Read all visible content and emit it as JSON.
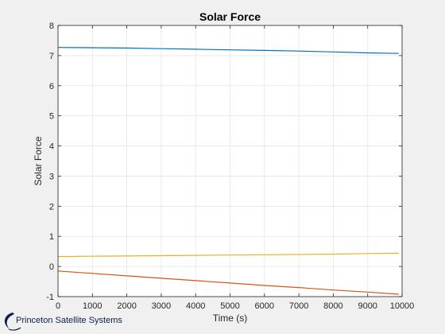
{
  "chart_data": {
    "type": "line",
    "title": "Solar Force",
    "xlabel": "Time (s)",
    "ylabel": "Solar Force",
    "xlim": [
      0,
      10000
    ],
    "ylim": [
      -1,
      8
    ],
    "xticks": [
      0,
      1000,
      2000,
      3000,
      4000,
      5000,
      6000,
      7000,
      8000,
      9000,
      10000
    ],
    "yticks": [
      -1,
      0,
      1,
      2,
      3,
      4,
      5,
      6,
      7,
      8
    ],
    "grid": true,
    "series": [
      {
        "color": "#0072bd",
        "x": [
          0,
          1000,
          2000,
          3000,
          4000,
          5000,
          6000,
          7000,
          8000,
          9000,
          9900
        ],
        "y": [
          7.27,
          7.26,
          7.25,
          7.23,
          7.21,
          7.19,
          7.17,
          7.15,
          7.12,
          7.09,
          7.07
        ]
      },
      {
        "color": "#edb120",
        "x": [
          0,
          1000,
          2000,
          3000,
          4000,
          5000,
          6000,
          7000,
          8000,
          9000,
          9900
        ],
        "y": [
          0.33,
          0.34,
          0.35,
          0.36,
          0.37,
          0.38,
          0.39,
          0.4,
          0.41,
          0.43,
          0.44
        ]
      },
      {
        "color": "#d95319",
        "x": [
          0,
          1000,
          2000,
          3000,
          4000,
          5000,
          6000,
          7000,
          8000,
          9000,
          9900
        ],
        "y": [
          -0.15,
          -0.23,
          -0.31,
          -0.39,
          -0.47,
          -0.55,
          -0.63,
          -0.7,
          -0.78,
          -0.85,
          -0.92
        ]
      }
    ]
  },
  "logo": {
    "text": "Princeton Satellite Systems",
    "color": "#0b1f4d"
  }
}
